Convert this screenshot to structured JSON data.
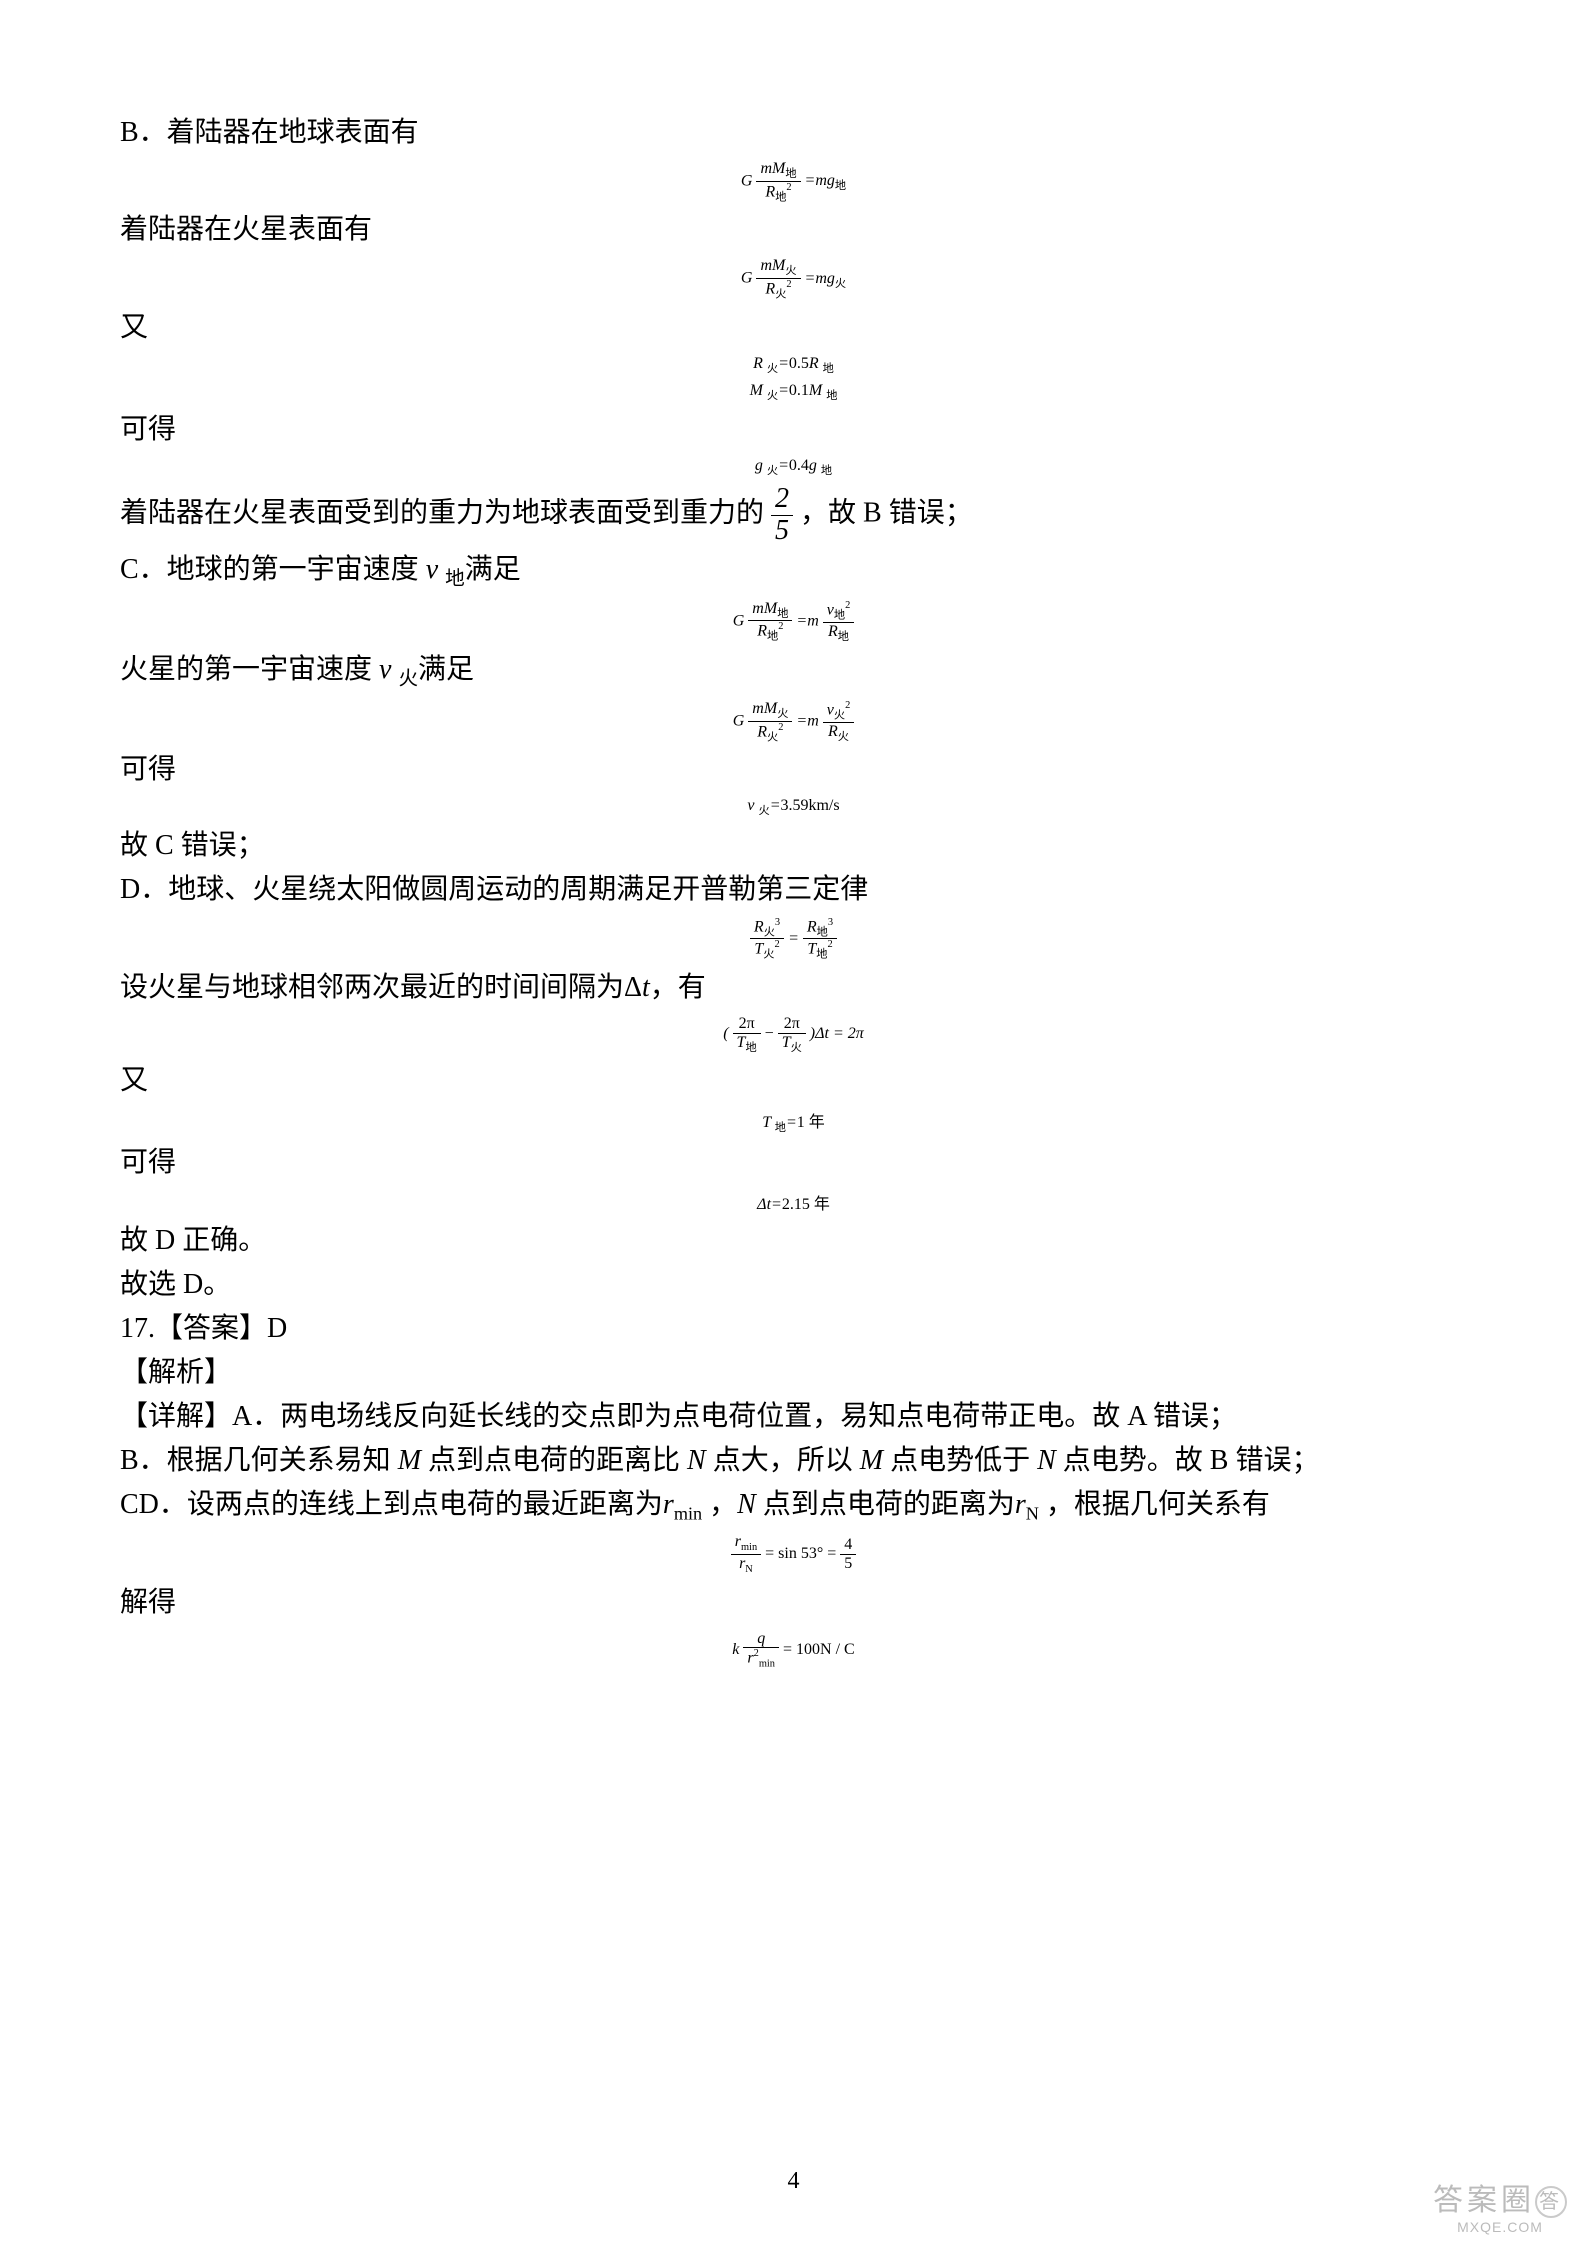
{
  "page_number": "4",
  "watermark": {
    "main": "答案圈",
    "sub": "MXQE.COM"
  },
  "q16": {
    "B": {
      "l1": "B．着陆器在地球表面有",
      "eq1": {
        "L": "G",
        "num": "mM<sub class='sub-cn'>地</sub>",
        "den": "R<sub class='sub-cn'>地</sub><sup>2</sup>",
        "R": "=mg<sub class='sub-cn'>地</sub>"
      },
      "l2": "着陆器在火星表面有",
      "eq2": {
        "L": "G",
        "num": "mM<sub class='sub-cn'>火</sub>",
        "den": "R<sub class='sub-cn'>火</sub><sup>2</sup>",
        "R": "=mg<sub class='sub-cn'>火</sub>"
      },
      "l3": "又",
      "eq3a": "R <sub class='sub-cn'>火</sub>=<span class='roman'>0.5</span>R <sub class='sub-cn'>地</sub>",
      "eq3b": "M <sub class='sub-cn'>火</sub>=<span class='roman'>0.1</span>M <sub class='sub-cn'>地</sub>",
      "l4": "可得",
      "eq4": "g <sub class='sub-cn'>火</sub>=<span class='roman'>0.4</span>g <sub class='sub-cn'>地</sub>",
      "l5a": "着陆器在火星表面受到的重力为地球表面受到重力的",
      "frac25": {
        "num": "2",
        "den": "5"
      },
      "l5b": " ，故 B 错误；"
    },
    "C": {
      "l1": "C．地球的第一宇宙速度 <i>v</i> <sub class='sub-cn'>地</sub>满足",
      "eq1": {
        "L": "G",
        "Lnum": "mM<sub class='sub-cn'>地</sub>",
        "Lden": "R<sub class='sub-cn'>地</sub><sup>2</sup>",
        "M": "=m",
        "Rnum": "v<sub class='sub-cn'>地</sub><sup>2</sup>",
        "Rden": "R<sub class='sub-cn'>地</sub>"
      },
      "l2": "火星的第一宇宙速度 <i>v</i> <sub class='sub-cn'>火</sub>满足",
      "eq2": {
        "L": "G",
        "Lnum": "mM<sub class='sub-cn'>火</sub>",
        "Lden": "R<sub class='sub-cn'>火</sub><sup>2</sup>",
        "M": "=m",
        "Rnum": "v<sub class='sub-cn'>火</sub><sup>2</sup>",
        "Rden": "R<sub class='sub-cn'>火</sub>"
      },
      "l3": "可得",
      "eq3": "v <sub class='sub-cn'>火</sub>=<span class='roman'>3.59km/s</span>",
      "l4": "故 C 错误；"
    },
    "D": {
      "l1": "D．地球、火星绕太阳做圆周运动的周期满足开普勒第三定律",
      "eq1": {
        "Lnum": "R<sub class='sub-cn'>火</sub><sup>3</sup>",
        "Lden": "T<sub class='sub-cn'>火</sub><sup>2</sup>",
        "eq": "=",
        "Rnum": "R<sub class='sub-cn'>地</sub><sup>3</sup>",
        "Rden": "T<sub class='sub-cn'>地</sub><sup>2</sup>"
      },
      "l2": "设火星与地球相邻两次最近的时间间隔为Δ<i>t</i>，有",
      "eq2": {
        "open": "(",
        "Anum": "2π",
        "Aden": "T<sub class='sub-cn'>地</sub>",
        "minus": " − ",
        "Bnum": "2π",
        "Bden": "T<sub class='sub-cn'>火</sub>",
        "close": ")Δt = 2π"
      },
      "l3": "又",
      "eq3": "T <sub class='sub-cn'>地</sub>=<span class='roman'>1 </span><span class='roman sub-cn' style='font-size:1em'>年</span>",
      "l4": "可得",
      "eq4": "Δt=<span class='roman'>2.15 </span><span class='roman sub-cn' style='font-size:1em'>年</span>",
      "l5": "故 D 正确。",
      "l6": "故选 D。"
    }
  },
  "q17": {
    "head": "17.【答案】D",
    "jx": "【解析】",
    "A": "【详解】A．两电场线反向延长线的交点即为点电荷位置，易知点电荷带正电。故 A 错误；",
    "B": "B．根据几何关系易知 <i>M</i> 点到点电荷的距离比 <i>N</i> 点大，所以 <i>M</i> 点电势低于 <i>N</i> 点电势。故 B 错误；",
    "CD": "CD．设两点的连线上到点电荷的最近距离为<i>r</i><sub>min</sub> ，<i>N</i> 点到点电荷的距离为<i>r<sub>N</sub></i> ，根据几何关系有",
    "eq1": {
      "Lnum": "r<sub>min</sub>",
      "Lden": "r<sub>N</sub>",
      "mid": " = sin 53° = ",
      "Rnum": "4",
      "Rden": "5"
    },
    "l_jd": "解得",
    "eq2": {
      "L": "k",
      "num": "q",
      "den": "r<sup>2</sup><sub>min</sub>",
      "R": " = 100N / C"
    }
  }
}
